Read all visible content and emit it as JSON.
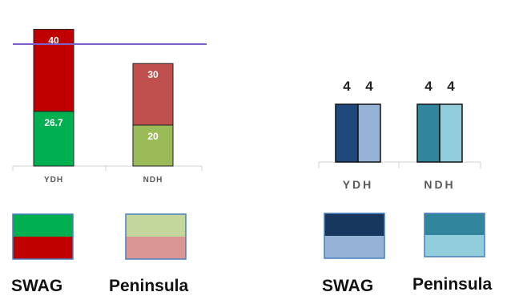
{
  "chart_data": [
    {
      "type": "bar",
      "stacked": true,
      "categories": [
        "YDH",
        "NDH"
      ],
      "series": [
        {
          "values": [
            26.7,
            20
          ],
          "colors": [
            "#00b050",
            "#9bbb59"
          ]
        },
        {
          "values": [
            40,
            30
          ],
          "colors": [
            "#c00000",
            "#c0504d"
          ]
        }
      ],
      "reference_line": {
        "color": "#7b61c9"
      },
      "ylim": [
        0,
        81
      ],
      "grid": false
    },
    {
      "type": "bar",
      "categories": [
        "YDH",
        "NDH"
      ],
      "series": [
        {
          "values": [
            4,
            4
          ],
          "colors": [
            "#1f497d",
            "#31859c"
          ]
        },
        {
          "values": [
            4,
            4
          ],
          "colors": [
            "#95b3d7",
            "#92cddc"
          ]
        }
      ],
      "grid": false
    }
  ],
  "legends": [
    {
      "label": "SWAG",
      "top_color": "#00b050",
      "bottom_color": "#c00000"
    },
    {
      "label": "Peninsula",
      "top_color": "#c3d69b",
      "bottom_color": "#d99694"
    },
    {
      "label": "SWAG",
      "top_color": "#17375e",
      "bottom_color": "#95b3d7"
    },
    {
      "label": "Peninsula",
      "top_color": "#31859c",
      "bottom_color": "#92cddc"
    }
  ]
}
